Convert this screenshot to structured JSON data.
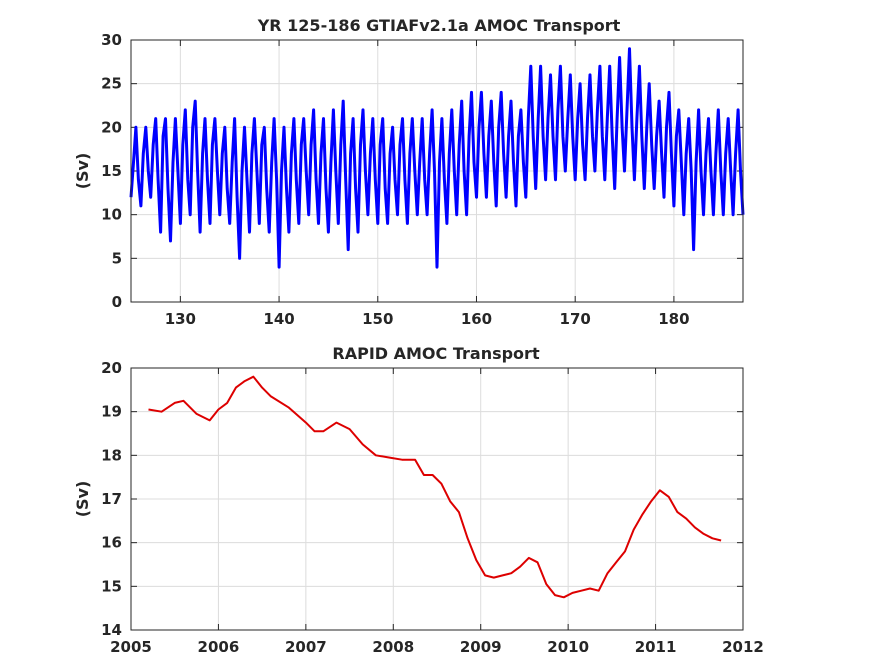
{
  "chart_data": [
    {
      "type": "line",
      "title": "YR 125-186 GTIAFv2.1a AMOC Transport",
      "xlabel": "",
      "ylabel": "(Sv)",
      "xlim": [
        125,
        187
      ],
      "ylim": [
        0,
        30
      ],
      "xticks": [
        130,
        140,
        150,
        160,
        170,
        180
      ],
      "yticks": [
        0,
        5,
        10,
        15,
        20,
        25,
        30
      ],
      "grid": true,
      "color": "#0000ff",
      "series": [
        {
          "x": [
            125.0,
            125.25,
            125.5,
            125.75,
            126.0,
            126.25,
            126.5,
            126.75,
            127.0,
            127.25,
            127.5,
            127.75,
            128.0,
            128.25,
            128.5,
            128.75,
            129.0,
            129.25,
            129.5,
            129.75,
            130.0,
            130.25,
            130.5,
            130.75,
            131.0,
            131.25,
            131.5,
            131.75,
            132.0,
            132.25,
            132.5,
            132.75,
            133.0,
            133.25,
            133.5,
            133.75,
            134.0,
            134.25,
            134.5,
            134.75,
            135.0,
            135.25,
            135.5,
            135.75,
            136.0,
            136.25,
            136.5,
            136.75,
            137.0,
            137.25,
            137.5,
            137.75,
            138.0,
            138.25,
            138.5,
            138.75,
            139.0,
            139.25,
            139.5,
            139.75,
            140.0,
            140.25,
            140.5,
            140.75,
            141.0,
            141.25,
            141.5,
            141.75,
            142.0,
            142.25,
            142.5,
            142.75,
            143.0,
            143.25,
            143.5,
            143.75,
            144.0,
            144.25,
            144.5,
            144.75,
            145.0,
            145.25,
            145.5,
            145.75,
            146.0,
            146.25,
            146.5,
            146.75,
            147.0,
            147.25,
            147.5,
            147.75,
            148.0,
            148.25,
            148.5,
            148.75,
            149.0,
            149.25,
            149.5,
            149.75,
            150.0,
            150.25,
            150.5,
            150.75,
            151.0,
            151.25,
            151.5,
            151.75,
            152.0,
            152.25,
            152.5,
            152.75,
            153.0,
            153.25,
            153.5,
            153.75,
            154.0,
            154.25,
            154.5,
            154.75,
            155.0,
            155.25,
            155.5,
            155.75,
            156.0,
            156.25,
            156.5,
            156.75,
            157.0,
            157.25,
            157.5,
            157.75,
            158.0,
            158.25,
            158.5,
            158.75,
            159.0,
            159.25,
            159.5,
            159.75,
            160.0,
            160.25,
            160.5,
            160.75,
            161.0,
            161.25,
            161.5,
            161.75,
            162.0,
            162.25,
            162.5,
            162.75,
            163.0,
            163.25,
            163.5,
            163.75,
            164.0,
            164.25,
            164.5,
            164.75,
            165.0,
            165.25,
            165.5,
            165.75,
            166.0,
            166.25,
            166.5,
            166.75,
            167.0,
            167.25,
            167.5,
            167.75,
            168.0,
            168.25,
            168.5,
            168.75,
            169.0,
            169.25,
            169.5,
            169.75,
            170.0,
            170.25,
            170.5,
            170.75,
            171.0,
            171.25,
            171.5,
            171.75,
            172.0,
            172.25,
            172.5,
            172.75,
            173.0,
            173.25,
            173.5,
            173.75,
            174.0,
            174.25,
            174.5,
            174.75,
            175.0,
            175.25,
            175.5,
            175.75,
            176.0,
            176.25,
            176.5,
            176.75,
            177.0,
            177.25,
            177.5,
            177.75,
            178.0,
            178.25,
            178.5,
            178.75,
            179.0,
            179.25,
            179.5,
            179.75,
            180.0,
            180.25,
            180.5,
            180.75,
            181.0,
            181.25,
            181.5,
            181.75,
            182.0,
            182.25,
            182.5,
            182.75,
            183.0,
            183.25,
            183.5,
            183.75,
            184.0,
            184.25,
            184.5,
            184.75,
            185.0,
            185.25,
            185.5,
            185.75,
            186.0,
            186.25,
            186.5,
            186.75,
            187.0
          ],
          "y": [
            12,
            16,
            20,
            14,
            11,
            17,
            20,
            15,
            12,
            18,
            21,
            14,
            8,
            19,
            21,
            13,
            7,
            16,
            21,
            15,
            9,
            18,
            22,
            14,
            10,
            20,
            23,
            15,
            8,
            17,
            21,
            14,
            9,
            18,
            21,
            15,
            10,
            17,
            20,
            13,
            9,
            16,
            21,
            12,
            5,
            15,
            20,
            14,
            8,
            17,
            21,
            15,
            9,
            18,
            20,
            13,
            8,
            16,
            21,
            14,
            4,
            15,
            20,
            13,
            8,
            17,
            21,
            14,
            9,
            18,
            21,
            15,
            10,
            18,
            22,
            14,
            9,
            17,
            21,
            13,
            8,
            16,
            22,
            15,
            9,
            18,
            23,
            14,
            6,
            17,
            21,
            13,
            8,
            18,
            22,
            15,
            10,
            17,
            21,
            14,
            9,
            18,
            21,
            13,
            9,
            17,
            20,
            14,
            10,
            18,
            21,
            14,
            9,
            17,
            21,
            15,
            10,
            16,
            21,
            14,
            10,
            17,
            22,
            15,
            4,
            16,
            21,
            14,
            9,
            17,
            22,
            15,
            10,
            18,
            23,
            15,
            10,
            19,
            24,
            16,
            12,
            20,
            24,
            17,
            12,
            19,
            23,
            16,
            11,
            20,
            24,
            17,
            12,
            19,
            23,
            16,
            11,
            19,
            22,
            16,
            12,
            21,
            27,
            19,
            13,
            21,
            27,
            19,
            14,
            21,
            26,
            19,
            14,
            22,
            27,
            19,
            15,
            21,
            26,
            19,
            14,
            21,
            25,
            18,
            14,
            21,
            26,
            19,
            15,
            22,
            27,
            19,
            14,
            21,
            27,
            19,
            13,
            21,
            28,
            20,
            15,
            22,
            29,
            20,
            14,
            21,
            27,
            19,
            13,
            20,
            25,
            18,
            13,
            19,
            23,
            17,
            12,
            20,
            24,
            17,
            11,
            19,
            22,
            16,
            10,
            17,
            21,
            15,
            6,
            16,
            22,
            15,
            10,
            17,
            21,
            15,
            10,
            17,
            22,
            15,
            10,
            17,
            21,
            15,
            10,
            17,
            22,
            15,
            10
          ]
        }
      ]
    },
    {
      "type": "line",
      "title": "RAPID AMOC Transport",
      "xlabel": "",
      "ylabel": "(Sv)",
      "xlim": [
        2005,
        2012
      ],
      "ylim": [
        14,
        20
      ],
      "xticks": [
        2005,
        2006,
        2007,
        2008,
        2009,
        2010,
        2011,
        2012
      ],
      "yticks": [
        14,
        15,
        16,
        17,
        18,
        19,
        20
      ],
      "grid": true,
      "color": "#dd0000",
      "series": [
        {
          "x": [
            2005.2,
            2005.35,
            2005.5,
            2005.6,
            2005.75,
            2005.9,
            2006.0,
            2006.1,
            2006.2,
            2006.3,
            2006.4,
            2006.5,
            2006.6,
            2006.8,
            2007.0,
            2007.1,
            2007.2,
            2007.35,
            2007.5,
            2007.65,
            2007.8,
            2007.95,
            2008.1,
            2008.25,
            2008.35,
            2008.45,
            2008.55,
            2008.65,
            2008.75,
            2008.85,
            2008.95,
            2009.05,
            2009.15,
            2009.25,
            2009.35,
            2009.45,
            2009.55,
            2009.65,
            2009.75,
            2009.85,
            2009.95,
            2010.05,
            2010.15,
            2010.25,
            2010.35,
            2010.45,
            2010.55,
            2010.65,
            2010.75,
            2010.85,
            2010.95,
            2011.05,
            2011.15,
            2011.25,
            2011.35,
            2011.45,
            2011.55,
            2011.65,
            2011.75
          ],
          "y": [
            19.05,
            19.0,
            19.2,
            19.25,
            18.95,
            18.8,
            19.05,
            19.2,
            19.55,
            19.7,
            19.8,
            19.55,
            19.35,
            19.1,
            18.75,
            18.55,
            18.55,
            18.75,
            18.6,
            18.25,
            18.0,
            17.95,
            17.9,
            17.9,
            17.55,
            17.55,
            17.35,
            16.95,
            16.7,
            16.1,
            15.6,
            15.25,
            15.2,
            15.25,
            15.3,
            15.45,
            15.65,
            15.55,
            15.05,
            14.8,
            14.75,
            14.85,
            14.9,
            14.95,
            14.9,
            15.3,
            15.55,
            15.8,
            16.3,
            16.65,
            16.95,
            17.2,
            17.05,
            16.7,
            16.55,
            16.35,
            16.2,
            16.1,
            16.05
          ]
        }
      ]
    }
  ]
}
